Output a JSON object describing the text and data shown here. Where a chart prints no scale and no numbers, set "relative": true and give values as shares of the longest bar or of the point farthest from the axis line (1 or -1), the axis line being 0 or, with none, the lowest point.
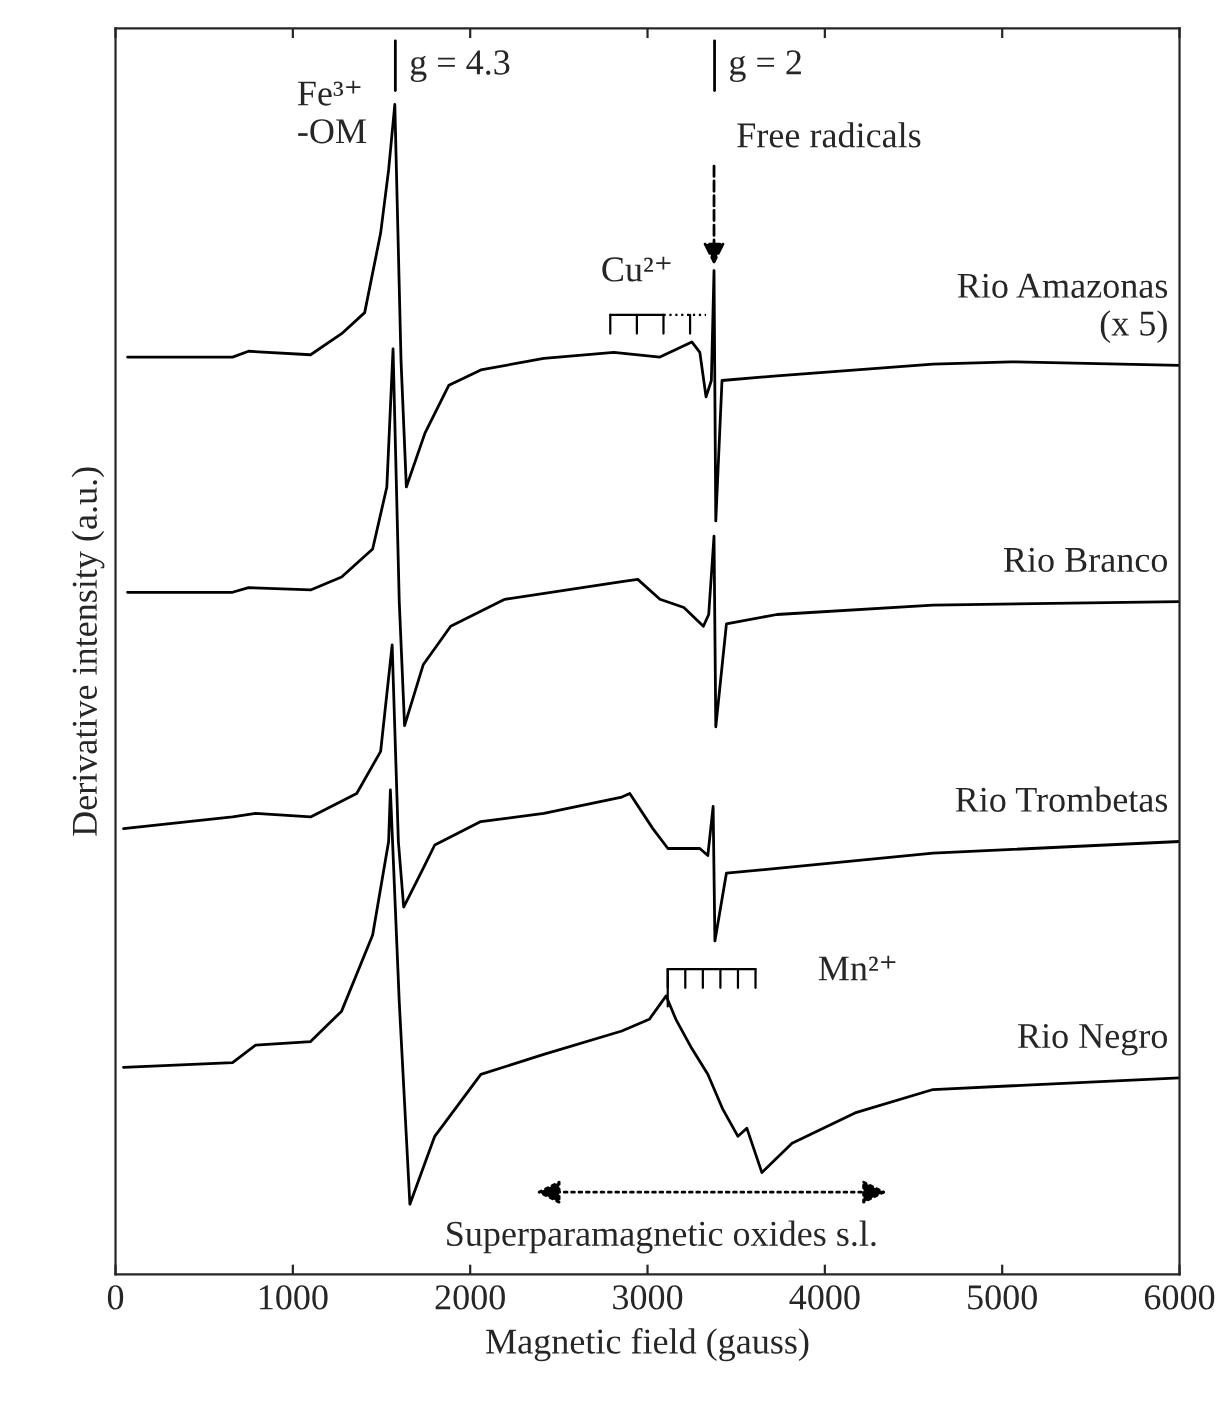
{
  "chart_data": {
    "type": "line",
    "xlabel": "Magnetic field (gauss)",
    "ylabel": "Derivative intensity (a.u.)",
    "relative": true,
    "xlim": [
      0,
      6000
    ],
    "xticks": [
      0,
      1000,
      2000,
      3000,
      4000,
      5000,
      6000
    ],
    "grid": false,
    "marker": "none",
    "line_style": "solid",
    "series": [
      {
        "name": "Rio Amazonas\n(x 5)",
        "color": "#000000",
        "x": [
          68,
          660,
          750,
          1100,
          1275,
          1405,
          1495,
          1540,
          1575,
          1610,
          1640,
          1745,
          1880,
          2060,
          2415,
          2810,
          3070,
          3250,
          3295,
          3330,
          3360,
          3375,
          3385,
          3420,
          3730,
          4610,
          5050,
          6000
        ],
        "values": [
          0.784,
          0.784,
          0.789,
          0.786,
          0.804,
          0.822,
          0.89,
          0.944,
          1.0,
          0.781,
          0.673,
          0.719,
          0.76,
          0.773,
          0.783,
          0.788,
          0.784,
          0.797,
          0.788,
          0.75,
          0.764,
          0.858,
          0.644,
          0.764,
          0.768,
          0.778,
          0.78,
          0.777
        ]
      },
      {
        "name": "Rio Branco",
        "color": "#000000",
        "x": [
          68,
          660,
          750,
          1100,
          1275,
          1450,
          1530,
          1565,
          1600,
          1630,
          1735,
          1890,
          2195,
          2855,
          2945,
          3070,
          3205,
          3315,
          3345,
          3375,
          3385,
          3445,
          3730,
          4610,
          6000
        ],
        "values": [
          0.583,
          0.583,
          0.587,
          0.585,
          0.596,
          0.62,
          0.673,
          0.791,
          0.575,
          0.469,
          0.521,
          0.554,
          0.577,
          0.592,
          0.594,
          0.577,
          0.57,
          0.554,
          0.564,
          0.631,
          0.468,
          0.556,
          0.564,
          0.572,
          0.575
        ]
      },
      {
        "name": "Rio Trombetas",
        "color": "#000000",
        "x": [
          45,
          660,
          790,
          1100,
          1360,
          1495,
          1560,
          1595,
          1625,
          1735,
          1800,
          2060,
          2415,
          2855,
          2900,
          3030,
          3115,
          3295,
          3340,
          3370,
          3380,
          3445,
          3730,
          4610,
          6000
        ],
        "values": [
          0.381,
          0.391,
          0.394,
          0.391,
          0.411,
          0.447,
          0.538,
          0.37,
          0.314,
          0.347,
          0.367,
          0.387,
          0.394,
          0.408,
          0.411,
          0.381,
          0.364,
          0.364,
          0.358,
          0.4,
          0.285,
          0.343,
          0.347,
          0.36,
          0.37
        ]
      },
      {
        "name": "Rio Negro",
        "color": "#000000",
        "x": [
          45,
          660,
          790,
          1100,
          1275,
          1450,
          1540,
          1550,
          1600,
          1660,
          1800,
          2060,
          2415,
          2855,
          3010,
          3105,
          3160,
          3250,
          3340,
          3425,
          3510,
          3560,
          3645,
          3815,
          4170,
          4610,
          6000
        ],
        "values": [
          0.177,
          0.181,
          0.196,
          0.199,
          0.225,
          0.29,
          0.37,
          0.414,
          0.233,
          0.06,
          0.118,
          0.171,
          0.188,
          0.208,
          0.218,
          0.238,
          0.218,
          0.193,
          0.171,
          0.141,
          0.118,
          0.125,
          0.087,
          0.112,
          0.138,
          0.158,
          0.168
        ]
      }
    ],
    "annotations": [
      {
        "text": "Fe³⁺\n-OM",
        "x": 1575,
        "y": 1.0
      },
      {
        "text": "Free radicals",
        "x": 3375,
        "y": 0.858
      },
      "Cu²⁺",
      "Mn²⁺",
      "Superparamagnetic oxides s.l.",
      "g = 4.3",
      "g = 2"
    ]
  }
}
